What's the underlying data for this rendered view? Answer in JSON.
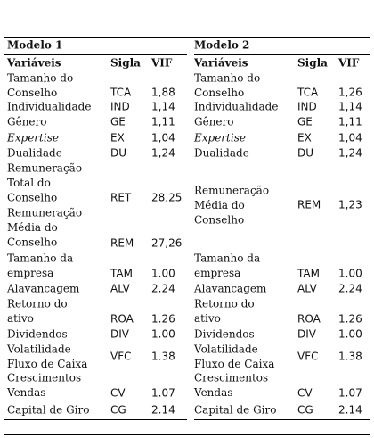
{
  "models": [
    {
      "title": "Modelo 1",
      "headers": [
        "Variáveis",
        "Sigla",
        "VIF"
      ],
      "rows": [
        {
          "variable": [
            "Tamanho do",
            "Conselho"
          ],
          "sigla": "TCA",
          "vif": "1,88"
        },
        {
          "variable": [
            "Individualidade"
          ],
          "sigla": "IND",
          "vif": "1,14"
        },
        {
          "variable": [
            "Gênero"
          ],
          "sigla": "GE",
          "vif": "1,11"
        },
        {
          "variable": [
            "Expertise"
          ],
          "sigla": "EX",
          "vif": "1,04",
          "style": "italic"
        },
        {
          "variable": [
            "Dualidade"
          ],
          "sigla": "DU",
          "vif": "1,24"
        },
        {
          "variable": [
            "Remuneração",
            "Total do",
            "Conselho"
          ],
          "sigla": "RET",
          "vif": "28,25"
        },
        {
          "variable": [
            "Remuneração",
            "Média do",
            "Conselho"
          ],
          "sigla": "REM",
          "vif": "27,26"
        },
        {
          "variable": [
            "Tamanho da",
            "empresa"
          ],
          "sigla": "TAM",
          "vif": "1.00"
        },
        {
          "variable": [
            "Alavancagem"
          ],
          "sigla": "ALV",
          "vif": "2.24"
        },
        {
          "variable": [
            "Retorno do",
            "ativo"
          ],
          "sigla": "ROA",
          "vif": "1.26"
        },
        {
          "variable": [
            "Dividendos"
          ],
          "sigla": "DIV",
          "vif": "1.00"
        },
        {
          "variable": [
            "Volatilidade",
            "Fluxo de Caixa"
          ],
          "sigla": "VFC",
          "vif": "1.38"
        },
        {
          "variable": [
            "Crescimentos",
            "Vendas"
          ],
          "sigla": "CV",
          "vif": "1.07"
        },
        {
          "variable": [
            "Capital de Giro"
          ],
          "sigla": "CG",
          "vif": "2.14"
        }
      ]
    },
    {
      "title": "Modelo 2",
      "headers": [
        "Variáveis",
        "Sigla",
        "VIF"
      ],
      "rows": [
        {
          "variable": [
            "Tamanho do",
            "Conselho"
          ],
          "sigla": "TCA",
          "vif": "1,26"
        },
        {
          "variable": [
            "Individualidade"
          ],
          "sigla": "IND",
          "vif": "1,14"
        },
        {
          "variable": [
            "Gênero"
          ],
          "sigla": "GE",
          "vif": "1,11"
        },
        {
          "variable": [
            "Expertise"
          ],
          "sigla": "EX",
          "vif": "1,04",
          "style": "italic"
        },
        {
          "variable": [
            "Dualidade"
          ],
          "sigla": "DU",
          "vif": "1,24"
        },
        {
          "variable": [
            "Remuneração",
            "Média do",
            "Conselho"
          ],
          "sigla": "REM",
          "vif": "1,23"
        },
        {
          "variable": [
            "Tamanho da",
            "empresa"
          ],
          "sigla": "TAM",
          "vif": "1.00"
        },
        {
          "variable": [
            "Alavancagem"
          ],
          "sigla": "ALV",
          "vif": "2.24"
        },
        {
          "variable": [
            "Retorno do",
            "ativo"
          ],
          "sigla": "ROA",
          "vif": "1.26"
        },
        {
          "variable": [
            "Dividendos"
          ],
          "sigla": "DIV",
          "vif": "1.00"
        },
        {
          "variable": [
            "Volatilidade",
            "Fluxo de Caixa"
          ],
          "sigla": "VFC",
          "vif": "1.38"
        },
        {
          "variable": [
            "Crescimentos",
            "Vendas"
          ],
          "sigla": "CV",
          "vif": "1.07"
        },
        {
          "variable": [
            "Capital de Giro"
          ],
          "sigla": "CG",
          "vif": "2.14"
        }
      ]
    }
  ]
}
